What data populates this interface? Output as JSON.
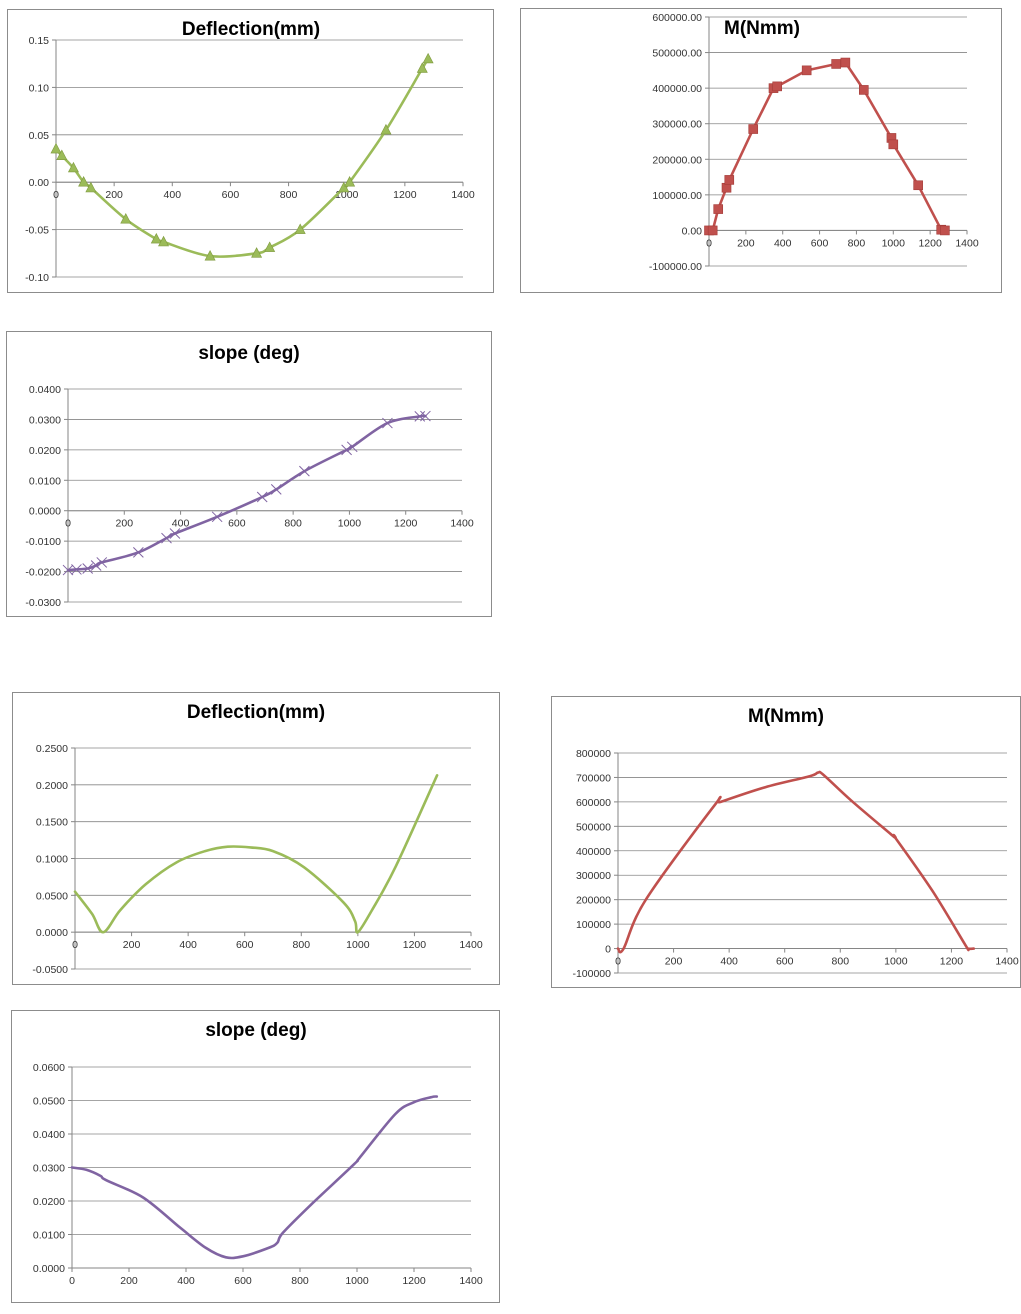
{
  "chart_data": [
    {
      "id": "c1",
      "type": "line",
      "title": "Deflection(mm)",
      "xlim": [
        0,
        1400
      ],
      "xticks": [
        0,
        200,
        400,
        600,
        800,
        1000,
        1200,
        1400
      ],
      "ylim": [
        -0.1,
        0.15
      ],
      "yticks": [
        "-0.10",
        "-0.05",
        "0.00",
        "0.05",
        "0.10",
        "0.15"
      ],
      "grid": true,
      "legend": "none",
      "marker": "triangle",
      "color": "#9bbb59",
      "series": [
        {
          "x": [
            0,
            20,
            60,
            95,
            120,
            240,
            345,
            370,
            530,
            690,
            735,
            840,
            990,
            1010,
            1135,
            1260,
            1280
          ],
          "values": [
            0.035,
            0.028,
            0.015,
            0.0,
            -0.006,
            -0.039,
            -0.06,
            -0.063,
            -0.078,
            -0.075,
            -0.069,
            -0.05,
            -0.006,
            0.0,
            0.055,
            0.12,
            0.13
          ]
        }
      ]
    },
    {
      "id": "c2",
      "type": "line",
      "title": "M(Nmm)",
      "xlim": [
        0,
        1400
      ],
      "xticks": [
        0,
        200,
        400,
        600,
        800,
        1000,
        1200,
        1400
      ],
      "ylim": [
        -100000,
        600000
      ],
      "yticks": [
        "-100000.00",
        "0.00",
        "100000.00",
        "200000.00",
        "300000.00",
        "400000.00",
        "500000.00",
        "600000.00"
      ],
      "grid": true,
      "legend": "none",
      "marker": "square",
      "color": "#c0504d",
      "series": [
        {
          "x": [
            0,
            20,
            50,
            95,
            110,
            240,
            350,
            370,
            530,
            690,
            740,
            840,
            990,
            1000,
            1135,
            1260,
            1280
          ],
          "values": [
            0,
            0,
            60000,
            120000,
            142000,
            285000,
            400000,
            405000,
            450000,
            468000,
            472000,
            395000,
            260000,
            242000,
            127000,
            2000,
            0
          ]
        }
      ]
    },
    {
      "id": "c3",
      "type": "line",
      "title": "slope (deg)",
      "xlim": [
        0,
        1400
      ],
      "xticks": [
        0,
        200,
        400,
        600,
        800,
        1000,
        1200,
        1400
      ],
      "ylim": [
        -0.03,
        0.04
      ],
      "yticks": [
        "-0.0300",
        "-0.0200",
        "-0.0100",
        "0.0000",
        "0.0100",
        "0.0200",
        "0.0300",
        "0.0400"
      ],
      "grid": true,
      "legend": "none",
      "marker": "cross",
      "color": "#8064a2",
      "series": [
        {
          "x": [
            0,
            30,
            70,
            100,
            120,
            250,
            350,
            380,
            530,
            690,
            740,
            840,
            990,
            1010,
            1135,
            1250,
            1270
          ],
          "values": [
            -0.0195,
            -0.0193,
            -0.019,
            -0.018,
            -0.017,
            -0.0137,
            -0.009,
            -0.0075,
            -0.002,
            0.0045,
            0.007,
            0.013,
            0.02,
            0.021,
            0.0288,
            0.031,
            0.0311
          ]
        }
      ]
    },
    {
      "id": "c4",
      "type": "line",
      "title": "Deflection(mm)",
      "xlim": [
        0,
        1400
      ],
      "xticks": [
        0,
        200,
        400,
        600,
        800,
        1000,
        1200,
        1400
      ],
      "ylim": [
        -0.05,
        0.25
      ],
      "yticks": [
        "-0.0500",
        "0.0000",
        "0.0500",
        "0.1000",
        "0.1500",
        "0.2000",
        "0.2500"
      ],
      "grid": true,
      "legend": "none",
      "marker": "none",
      "color": "#9bbb59",
      "series": [
        {
          "x": [
            0,
            60,
            100,
            160,
            250,
            360,
            460,
            540,
            620,
            700,
            810,
            950,
            990,
            1000,
            1050,
            1135,
            1280
          ],
          "values": [
            0.055,
            0.025,
            0.0,
            0.03,
            0.065,
            0.095,
            0.11,
            0.116,
            0.115,
            0.11,
            0.088,
            0.04,
            0.015,
            0.0,
            0.03,
            0.09,
            0.213
          ]
        }
      ]
    },
    {
      "id": "c5",
      "type": "line",
      "title": "M(Nmm)",
      "xlim": [
        0,
        1400
      ],
      "xticks": [
        0,
        200,
        400,
        600,
        800,
        1000,
        1200,
        1400
      ],
      "ylim": [
        -100000,
        800000
      ],
      "yticks": [
        "-100000",
        "0",
        "100000",
        "200000",
        "300000",
        "400000",
        "500000",
        "600000",
        "700000",
        "800000"
      ],
      "grid": true,
      "legend": "none",
      "marker": "none",
      "color": "#c0504d",
      "series": [
        {
          "x": [
            0,
            20,
            100,
            350,
            370,
            530,
            690,
            720,
            740,
            840,
            990,
            1000,
            1135,
            1250,
            1260,
            1280
          ],
          "values": [
            0,
            0,
            200000,
            590000,
            600000,
            660000,
            705000,
            720000,
            710000,
            605000,
            460000,
            450000,
            230000,
            15000,
            0,
            0
          ]
        }
      ]
    },
    {
      "id": "c6",
      "type": "line",
      "title": "slope (deg)",
      "xlim": [
        0,
        1400
      ],
      "xticks": [
        0,
        200,
        400,
        600,
        800,
        1000,
        1200,
        1400
      ],
      "ylim": [
        0,
        0.06
      ],
      "yticks": [
        "0.0000",
        "0.0100",
        "0.0200",
        "0.0300",
        "0.0400",
        "0.0500",
        "0.0600"
      ],
      "grid": true,
      "legend": "none",
      "marker": "none",
      "color": "#8064a2",
      "series": [
        {
          "x": [
            0,
            50,
            100,
            120,
            250,
            380,
            470,
            540,
            600,
            690,
            720,
            740,
            840,
            990,
            1010,
            1135,
            1200,
            1260,
            1280
          ],
          "values": [
            0.03,
            0.0293,
            0.0275,
            0.0262,
            0.021,
            0.012,
            0.006,
            0.0032,
            0.0035,
            0.006,
            0.0075,
            0.0105,
            0.019,
            0.031,
            0.033,
            0.046,
            0.0495,
            0.051,
            0.0512
          ]
        }
      ]
    }
  ]
}
